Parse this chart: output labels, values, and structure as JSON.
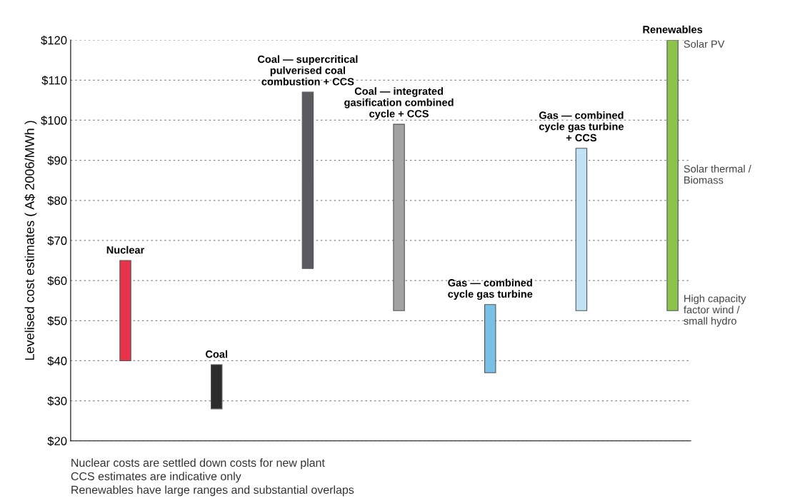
{
  "chart_data": {
    "type": "bar",
    "ylabel": "Levelised cost estimates ( A$ 2006/MWh )",
    "categories": [
      "Nuclear",
      "Coal",
      "Coal — supercritical\npulverised coal\ncombustion + CCS",
      "Coal — integrated\ngasification combined\ncycle + CCS",
      "Gas — combined\ncycle gas turbine",
      "Gas — combined\ncycle gas turbine\n+ CCS",
      "Renewables"
    ],
    "base": [
      40,
      28,
      63,
      52.5,
      37,
      52.5,
      52.5
    ],
    "values": [
      25,
      11,
      44,
      46.5,
      17,
      40.5,
      67.5
    ],
    "colors": [
      "#e8334a",
      "#2b2b2e",
      "#5b5b5f",
      "#a3a3a6",
      "#78c0e6",
      "#bfe3f5",
      "#8cc34a"
    ],
    "ylim": [
      20,
      120
    ],
    "yticks": [
      {
        "value": 20,
        "label": "$20"
      },
      {
        "value": 30,
        "label": "$30"
      },
      {
        "value": 40,
        "label": "$40"
      },
      {
        "value": 50,
        "label": "$50"
      },
      {
        "value": 60,
        "label": "$60"
      },
      {
        "value": 70,
        "label": "$70"
      },
      {
        "value": 80,
        "label": "$80"
      },
      {
        "value": 90,
        "label": "$90"
      },
      {
        "value": 100,
        "label": "$100"
      },
      {
        "value": 110,
        "label": "$110"
      },
      {
        "value": 120,
        "label": "$120"
      }
    ],
    "grid": "y",
    "annotations": [
      {
        "text": "Solar PV",
        "x": "Renewables",
        "y": 120
      },
      "Solar thermal /\nBiomass",
      {
        "text": "High capacity\nfactor wind /\nsmall hydro",
        "x": "Renewables",
        "y": 52.5
      },
      "Nuclear costs are settled down costs for new plant",
      "CCS estimates are indicative only",
      "Renewables have large ranges and substantial overlaps"
    ]
  }
}
